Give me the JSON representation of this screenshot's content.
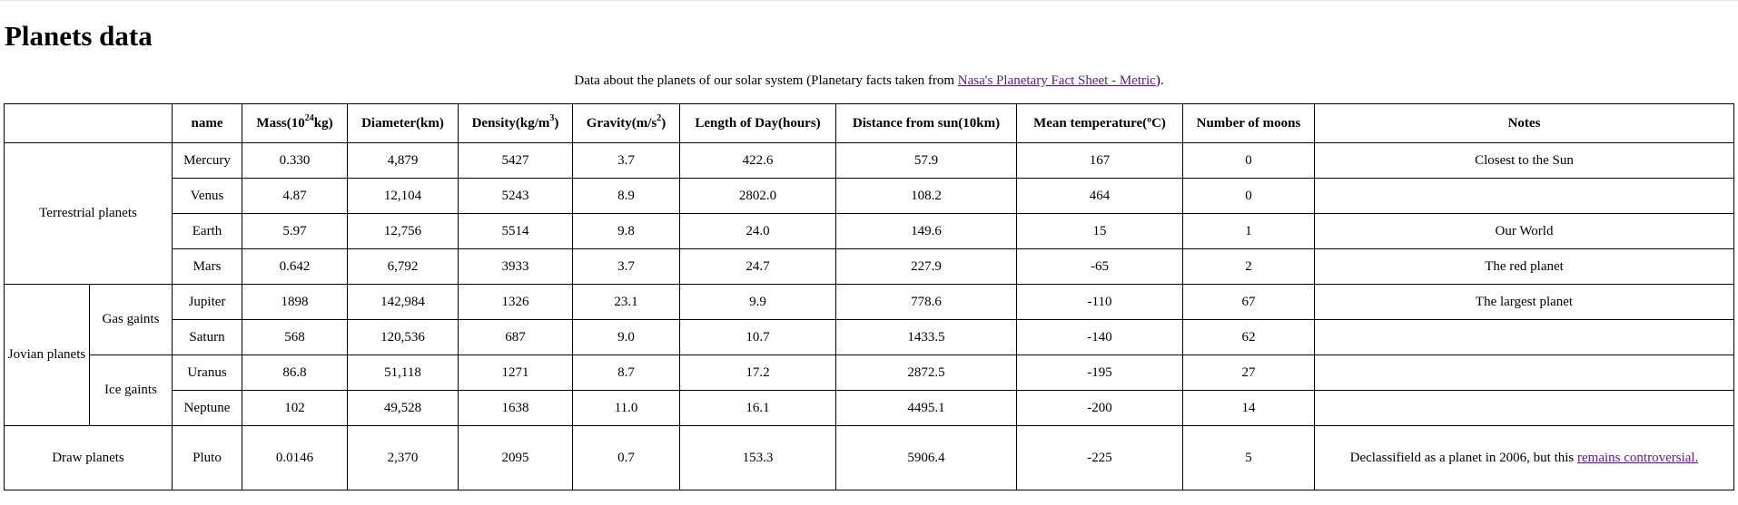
{
  "page": {
    "title": "Planets data",
    "caption_prefix": "Data about the planets of our solar system (Planetary facts taken from ",
    "caption_link": "Nasa's Planetary Fact Sheet - Metric",
    "caption_suffix": ")."
  },
  "headers": {
    "name": "name",
    "mass_prefix": "Mass(10",
    "mass_sup": "24",
    "mass_suffix": "kg)",
    "diameter": "Diameter(km)",
    "density_prefix": "Density(kg/m",
    "density_sup": "3",
    "density_suffix": ")",
    "gravity_prefix": "Gravity(m/s",
    "gravity_sup": "2",
    "gravity_suffix": ")",
    "day": "Length of Day(hours)",
    "distance": "Distance from sun(10km)",
    "temp": "Mean temperature(ºC)",
    "moons": "Number of moons",
    "notes": "Notes"
  },
  "groups": {
    "terrestrial": "Terrestrial planets",
    "jovian": "Jovian planets",
    "gas": "Gas gaints",
    "ice": "Ice gaints",
    "dwarf": "Draw planets"
  },
  "planets": [
    {
      "name": "Mercury",
      "mass": "0.330",
      "diameter": "4,879",
      "density": "5427",
      "gravity": "3.7",
      "day": "422.6",
      "distance": "57.9",
      "temp": "167",
      "moons": "0",
      "notes": "Closest to the Sun"
    },
    {
      "name": "Venus",
      "mass": "4.87",
      "diameter": "12,104",
      "density": "5243",
      "gravity": "8.9",
      "day": "2802.0",
      "distance": "108.2",
      "temp": "464",
      "moons": "0",
      "notes": ""
    },
    {
      "name": "Earth",
      "mass": "5.97",
      "diameter": "12,756",
      "density": "5514",
      "gravity": "9.8",
      "day": "24.0",
      "distance": "149.6",
      "temp": "15",
      "moons": "1",
      "notes": "Our World"
    },
    {
      "name": "Mars",
      "mass": "0.642",
      "diameter": "6,792",
      "density": "3933",
      "gravity": "3.7",
      "day": "24.7",
      "distance": "227.9",
      "temp": "-65",
      "moons": "2",
      "notes": "The red planet"
    },
    {
      "name": "Jupiter",
      "mass": "1898",
      "diameter": "142,984",
      "density": "1326",
      "gravity": "23.1",
      "day": "9.9",
      "distance": "778.6",
      "temp": "-110",
      "moons": "67",
      "notes": "The largest planet"
    },
    {
      "name": "Saturn",
      "mass": "568",
      "diameter": "120,536",
      "density": "687",
      "gravity": "9.0",
      "day": "10.7",
      "distance": "1433.5",
      "temp": "-140",
      "moons": "62",
      "notes": ""
    },
    {
      "name": "Uranus",
      "mass": "86.8",
      "diameter": "51,118",
      "density": "1271",
      "gravity": "8.7",
      "day": "17.2",
      "distance": "2872.5",
      "temp": "-195",
      "moons": "27",
      "notes": ""
    },
    {
      "name": "Neptune",
      "mass": "102",
      "diameter": "49,528",
      "density": "1638",
      "gravity": "11.0",
      "day": "16.1",
      "distance": "4495.1",
      "temp": "-200",
      "moons": "14",
      "notes": ""
    },
    {
      "name": "Pluto",
      "mass": "0.0146",
      "diameter": "2,370",
      "density": "2095",
      "gravity": "0.7",
      "day": "153.3",
      "distance": "5906.4",
      "temp": "-225",
      "moons": "5",
      "notes": "Declassifield as a planet in 2006, but this ",
      "notes_link": "remains controversial."
    }
  ]
}
